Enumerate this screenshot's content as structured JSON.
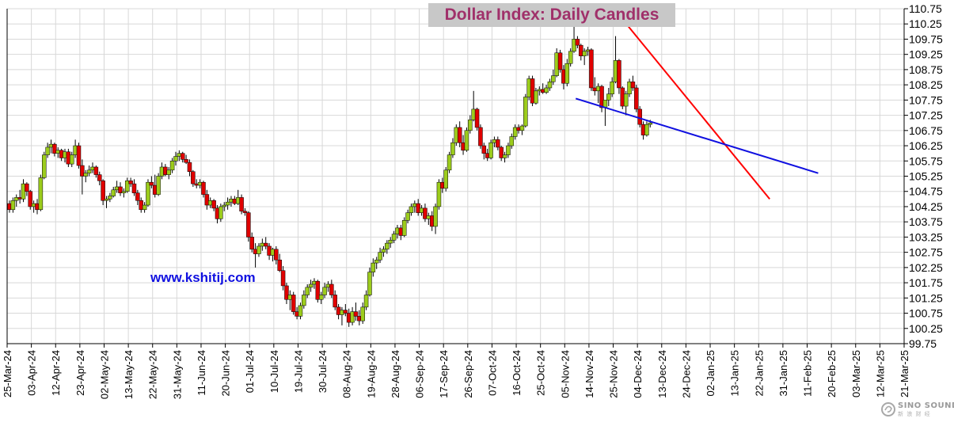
{
  "title": "Dollar Index: Daily Candles",
  "website": "www.kshitij.com",
  "logo": {
    "text": "SINO SOUND",
    "subtext": "新 浪 财 经"
  },
  "colors": {
    "up_candle": "#9ccc1c",
    "down_candle": "#e00000",
    "wick": "#000000",
    "grid": "#d8d8d8",
    "title_text": "#a0306a",
    "title_bg": "#c8c8c8",
    "website_text": "#1010e0",
    "resistance_line": "#ff0000",
    "support_line": "#1010e0"
  },
  "chart_data": {
    "type": "candlestick",
    "title": "Dollar Index: Daily Candles",
    "y_axis_side": "right",
    "ylim": [
      99.75,
      110.75
    ],
    "y_ticks": [
      "110.75",
      "110.25",
      "109.75",
      "109.25",
      "108.75",
      "108.25",
      "107.75",
      "107.25",
      "106.75",
      "106.25",
      "105.75",
      "105.25",
      "104.75",
      "104.25",
      "103.75",
      "103.25",
      "102.75",
      "102.25",
      "101.75",
      "101.25",
      "100.75",
      "100.25",
      "99.75"
    ],
    "x_tick_labels": [
      "25-Mar-24",
      "03-Apr-24",
      "12-Apr-24",
      "23-Apr-24",
      "02-May-24",
      "13-May-24",
      "22-May-24",
      "31-May-24",
      "11-Jun-24",
      "20-Jun-24",
      "01-Jul-24",
      "10-Jul-24",
      "19-Jul-24",
      "30-Jul-24",
      "08-Aug-24",
      "19-Aug-24",
      "28-Aug-24",
      "06-Sep-24",
      "17-Sep-24",
      "26-Sep-24",
      "07-Oct-24",
      "16-Oct-24",
      "25-Oct-24",
      "05-Nov-24",
      "14-Nov-24",
      "25-Nov-24",
      "04-Dec-24",
      "13-Dec-24",
      "24-Dec-24",
      "02-Jan-25",
      "13-Jan-25",
      "22-Jan-25",
      "31-Jan-25",
      "11-Feb-25",
      "20-Feb-25",
      "03-Mar-25",
      "12-Mar-25",
      "21-Mar-25"
    ],
    "x_tick_spacing_days": 7,
    "grid": true,
    "candles": [
      [
        104.35,
        104.45,
        104.05,
        104.15
      ],
      [
        104.15,
        104.55,
        104.05,
        104.45
      ],
      [
        104.45,
        104.65,
        104.25,
        104.55
      ],
      [
        104.55,
        104.8,
        104.35,
        104.5
      ],
      [
        104.5,
        105.15,
        104.4,
        105.0
      ],
      [
        105.0,
        105.05,
        104.6,
        104.75
      ],
      [
        104.75,
        104.8,
        104.15,
        104.25
      ],
      [
        104.25,
        104.45,
        104.05,
        104.35
      ],
      [
        104.35,
        104.5,
        104.0,
        104.15
      ],
      [
        104.15,
        105.3,
        104.1,
        105.2
      ],
      [
        105.2,
        106.05,
        105.15,
        105.95
      ],
      [
        105.95,
        106.35,
        105.85,
        106.2
      ],
      [
        106.2,
        106.45,
        106.0,
        106.3
      ],
      [
        106.3,
        106.35,
        105.9,
        106.0
      ],
      [
        106.0,
        106.2,
        105.85,
        106.1
      ],
      [
        106.1,
        106.15,
        105.75,
        105.85
      ],
      [
        105.85,
        106.15,
        105.7,
        106.05
      ],
      [
        106.05,
        106.15,
        105.55,
        105.65
      ],
      [
        105.65,
        106.05,
        105.55,
        105.95
      ],
      [
        105.95,
        106.45,
        105.85,
        106.25
      ],
      [
        106.25,
        106.35,
        105.5,
        105.6
      ],
      [
        105.6,
        105.8,
        104.65,
        105.25
      ],
      [
        105.25,
        105.45,
        105.05,
        105.35
      ],
      [
        105.35,
        105.6,
        105.25,
        105.45
      ],
      [
        105.45,
        105.7,
        105.35,
        105.55
      ],
      [
        105.55,
        105.6,
        105.2,
        105.3
      ],
      [
        105.3,
        105.4,
        104.95,
        105.1
      ],
      [
        105.1,
        105.15,
        104.3,
        104.45
      ],
      [
        104.45,
        104.6,
        104.2,
        104.5
      ],
      [
        104.5,
        104.7,
        104.4,
        104.6
      ],
      [
        104.6,
        104.9,
        104.55,
        104.8
      ],
      [
        104.8,
        105.1,
        104.7,
        104.9
      ],
      [
        104.9,
        105.05,
        104.6,
        104.7
      ],
      [
        104.7,
        104.85,
        104.55,
        104.75
      ],
      [
        104.75,
        105.2,
        104.7,
        105.1
      ],
      [
        105.1,
        105.2,
        104.9,
        105.0
      ],
      [
        105.0,
        105.15,
        104.6,
        104.7
      ],
      [
        104.7,
        104.8,
        104.3,
        104.45
      ],
      [
        104.45,
        104.55,
        104.05,
        104.15
      ],
      [
        104.15,
        104.4,
        104.05,
        104.3
      ],
      [
        104.3,
        105.15,
        104.25,
        105.05
      ],
      [
        105.05,
        105.25,
        104.85,
        104.95
      ],
      [
        104.95,
        105.3,
        104.55,
        104.65
      ],
      [
        104.65,
        105.35,
        104.6,
        105.25
      ],
      [
        105.25,
        105.7,
        105.15,
        105.55
      ],
      [
        105.55,
        105.65,
        105.25,
        105.3
      ],
      [
        105.3,
        105.55,
        105.15,
        105.45
      ],
      [
        105.45,
        105.85,
        105.35,
        105.75
      ],
      [
        105.75,
        106.05,
        105.6,
        105.9
      ],
      [
        105.9,
        106.1,
        105.75,
        106.0
      ],
      [
        106.0,
        106.05,
        105.7,
        105.8
      ],
      [
        105.8,
        105.95,
        105.65,
        105.7
      ],
      [
        105.7,
        105.8,
        105.25,
        105.4
      ],
      [
        105.4,
        105.45,
        104.9,
        105.0
      ],
      [
        105.0,
        105.15,
        104.85,
        104.95
      ],
      [
        104.95,
        105.15,
        104.85,
        105.05
      ],
      [
        105.05,
        105.1,
        104.55,
        104.65
      ],
      [
        104.65,
        104.8,
        104.15,
        104.3
      ],
      [
        104.3,
        104.55,
        104.2,
        104.45
      ],
      [
        104.45,
        104.5,
        104.1,
        104.2
      ],
      [
        104.2,
        104.3,
        103.7,
        103.85
      ],
      [
        103.85,
        104.35,
        103.75,
        104.25
      ],
      [
        104.25,
        104.4,
        104.1,
        104.3
      ],
      [
        104.3,
        104.55,
        104.15,
        104.4
      ],
      [
        104.4,
        104.6,
        104.25,
        104.5
      ],
      [
        104.5,
        104.6,
        104.3,
        104.35
      ],
      [
        104.35,
        104.8,
        104.3,
        104.55
      ],
      [
        104.55,
        104.65,
        104.0,
        104.1
      ],
      [
        104.1,
        104.2,
        103.95,
        104.05
      ],
      [
        104.05,
        104.1,
        103.1,
        103.25
      ],
      [
        103.25,
        103.4,
        102.75,
        102.85
      ],
      [
        102.85,
        103.05,
        102.25,
        102.7
      ],
      [
        102.7,
        103.05,
        102.6,
        102.95
      ],
      [
        102.95,
        103.2,
        102.8,
        103.05
      ],
      [
        103.05,
        103.25,
        102.85,
        102.95
      ],
      [
        102.95,
        103.05,
        102.5,
        102.65
      ],
      [
        102.65,
        102.9,
        102.45,
        102.85
      ],
      [
        102.85,
        102.95,
        102.35,
        102.5
      ],
      [
        102.5,
        102.7,
        102.1,
        102.15
      ],
      [
        102.15,
        102.3,
        101.5,
        101.65
      ],
      [
        101.65,
        101.75,
        101.05,
        101.2
      ],
      [
        101.2,
        101.5,
        100.85,
        101.35
      ],
      [
        101.35,
        101.45,
        100.7,
        100.8
      ],
      [
        100.8,
        100.95,
        100.55,
        100.65
      ],
      [
        100.65,
        101.1,
        100.55,
        101.0
      ],
      [
        101.0,
        101.5,
        100.9,
        101.35
      ],
      [
        101.35,
        101.7,
        101.25,
        101.6
      ],
      [
        101.6,
        101.85,
        101.45,
        101.7
      ],
      [
        101.7,
        101.9,
        101.55,
        101.8
      ],
      [
        101.8,
        101.85,
        101.1,
        101.2
      ],
      [
        101.2,
        101.45,
        101.05,
        101.35
      ],
      [
        101.35,
        101.75,
        101.25,
        101.6
      ],
      [
        101.6,
        101.8,
        101.45,
        101.7
      ],
      [
        101.7,
        101.85,
        101.25,
        101.35
      ],
      [
        101.35,
        101.5,
        100.85,
        100.95
      ],
      [
        100.95,
        101.05,
        100.55,
        100.7
      ],
      [
        100.7,
        100.95,
        100.35,
        100.85
      ],
      [
        100.85,
        101.05,
        100.65,
        100.75
      ],
      [
        100.75,
        100.9,
        100.3,
        100.45
      ],
      [
        100.45,
        100.95,
        100.35,
        100.8
      ],
      [
        100.8,
        101.1,
        100.5,
        100.65
      ],
      [
        100.65,
        100.85,
        100.35,
        100.5
      ],
      [
        100.5,
        101.1,
        100.4,
        100.95
      ],
      [
        100.95,
        101.5,
        100.85,
        101.35
      ],
      [
        101.35,
        102.25,
        101.3,
        102.1
      ],
      [
        102.1,
        102.55,
        101.95,
        102.4
      ],
      [
        102.4,
        102.6,
        102.2,
        102.5
      ],
      [
        102.5,
        102.9,
        102.4,
        102.75
      ],
      [
        102.75,
        102.95,
        102.6,
        102.85
      ],
      [
        102.85,
        103.15,
        102.7,
        103.05
      ],
      [
        103.05,
        103.25,
        102.9,
        103.15
      ],
      [
        103.15,
        103.45,
        103.05,
        103.35
      ],
      [
        103.35,
        103.65,
        103.2,
        103.55
      ],
      [
        103.55,
        103.65,
        103.15,
        103.3
      ],
      [
        103.3,
        103.9,
        103.25,
        103.8
      ],
      [
        103.8,
        104.15,
        103.7,
        104.05
      ],
      [
        104.05,
        104.35,
        103.95,
        104.25
      ],
      [
        104.25,
        104.45,
        104.05,
        104.35
      ],
      [
        104.35,
        104.5,
        103.95,
        104.05
      ],
      [
        104.05,
        104.3,
        103.95,
        104.2
      ],
      [
        104.2,
        104.35,
        103.75,
        103.85
      ],
      [
        103.85,
        104.05,
        103.65,
        103.95
      ],
      [
        103.95,
        104.1,
        103.45,
        103.6
      ],
      [
        103.6,
        104.35,
        103.35,
        104.25
      ],
      [
        104.25,
        105.15,
        104.15,
        105.05
      ],
      [
        105.05,
        105.2,
        104.7,
        104.85
      ],
      [
        104.85,
        105.55,
        104.75,
        105.45
      ],
      [
        105.45,
        106.05,
        105.35,
        105.95
      ],
      [
        105.95,
        106.5,
        105.85,
        106.35
      ],
      [
        106.35,
        106.95,
        106.25,
        106.85
      ],
      [
        106.85,
        107.05,
        106.2,
        106.35
      ],
      [
        106.35,
        106.6,
        105.95,
        106.1
      ],
      [
        106.1,
        106.85,
        106.05,
        106.75
      ],
      [
        106.75,
        107.25,
        106.65,
        107.1
      ],
      [
        107.1,
        108.05,
        107.05,
        107.45
      ],
      [
        107.45,
        107.5,
        106.75,
        106.85
      ],
      [
        106.85,
        106.95,
        106.15,
        106.25
      ],
      [
        106.25,
        106.35,
        105.8,
        106.0
      ],
      [
        106.0,
        106.15,
        105.75,
        105.85
      ],
      [
        105.85,
        106.45,
        105.8,
        106.35
      ],
      [
        106.35,
        106.55,
        106.2,
        106.45
      ],
      [
        106.45,
        106.55,
        106.1,
        106.2
      ],
      [
        106.2,
        106.25,
        105.75,
        105.85
      ],
      [
        105.85,
        106.05,
        105.7,
        105.95
      ],
      [
        105.95,
        106.35,
        105.85,
        106.25
      ],
      [
        106.25,
        106.65,
        106.15,
        106.55
      ],
      [
        106.55,
        106.95,
        106.45,
        106.85
      ],
      [
        106.85,
        106.95,
        106.65,
        106.75
      ],
      [
        106.75,
        106.95,
        106.6,
        106.9
      ],
      [
        106.9,
        107.95,
        106.85,
        107.85
      ],
      [
        107.85,
        108.55,
        107.75,
        108.45
      ],
      [
        108.45,
        108.55,
        107.55,
        107.65
      ],
      [
        107.65,
        108.15,
        107.6,
        108.05
      ],
      [
        108.05,
        108.2,
        107.9,
        108.1
      ],
      [
        108.1,
        108.3,
        107.95,
        108.0
      ],
      [
        108.0,
        108.25,
        107.95,
        108.15
      ],
      [
        108.15,
        108.45,
        108.05,
        108.35
      ],
      [
        108.35,
        108.75,
        108.25,
        108.55
      ],
      [
        108.55,
        109.45,
        108.5,
        109.3
      ],
      [
        109.3,
        109.4,
        108.65,
        108.75
      ],
      [
        108.75,
        108.9,
        108.1,
        108.3
      ],
      [
        108.3,
        109.1,
        108.2,
        108.95
      ],
      [
        108.95,
        109.45,
        108.85,
        109.35
      ],
      [
        109.35,
        110.2,
        109.3,
        109.75
      ],
      [
        109.75,
        109.85,
        109.45,
        109.55
      ],
      [
        109.55,
        109.6,
        109.05,
        109.2
      ],
      [
        109.2,
        109.45,
        108.9,
        109.35
      ],
      [
        109.35,
        109.5,
        109.2,
        109.4
      ],
      [
        109.4,
        109.45,
        108.05,
        108.15
      ],
      [
        108.15,
        108.5,
        107.9,
        108.05
      ],
      [
        108.05,
        108.3,
        107.65,
        108.2
      ],
      [
        108.2,
        108.25,
        107.35,
        107.5
      ],
      [
        107.5,
        107.7,
        106.9,
        107.75
      ],
      [
        107.75,
        108.15,
        107.55,
        107.95
      ],
      [
        107.95,
        108.5,
        107.85,
        108.35
      ],
      [
        108.35,
        109.85,
        108.3,
        109.05
      ],
      [
        109.05,
        109.1,
        107.95,
        108.15
      ],
      [
        108.15,
        108.2,
        107.45,
        107.55
      ],
      [
        107.55,
        108.05,
        107.25,
        107.95
      ],
      [
        107.95,
        108.45,
        107.85,
        108.35
      ],
      [
        108.35,
        108.55,
        108.05,
        108.15
      ],
      [
        108.15,
        108.25,
        107.35,
        107.45
      ],
      [
        107.45,
        107.55,
        106.85,
        106.95
      ],
      [
        106.95,
        107.05,
        106.45,
        106.6
      ],
      [
        106.6,
        107.05,
        106.55,
        106.95
      ],
      [
        106.95,
        107.1,
        106.85,
        107.0
      ]
    ],
    "trend_lines": [
      {
        "name": "resistance",
        "color": "#ff0000",
        "from": {
          "idx": 174.5,
          "price": 110.75
        },
        "to": {
          "idx": 219.5,
          "price": 104.5
        }
      },
      {
        "name": "support",
        "color": "#1010e0",
        "from": {
          "idx": 163.5,
          "price": 107.8
        },
        "to": {
          "idx": 233.5,
          "price": 105.35
        }
      }
    ]
  }
}
